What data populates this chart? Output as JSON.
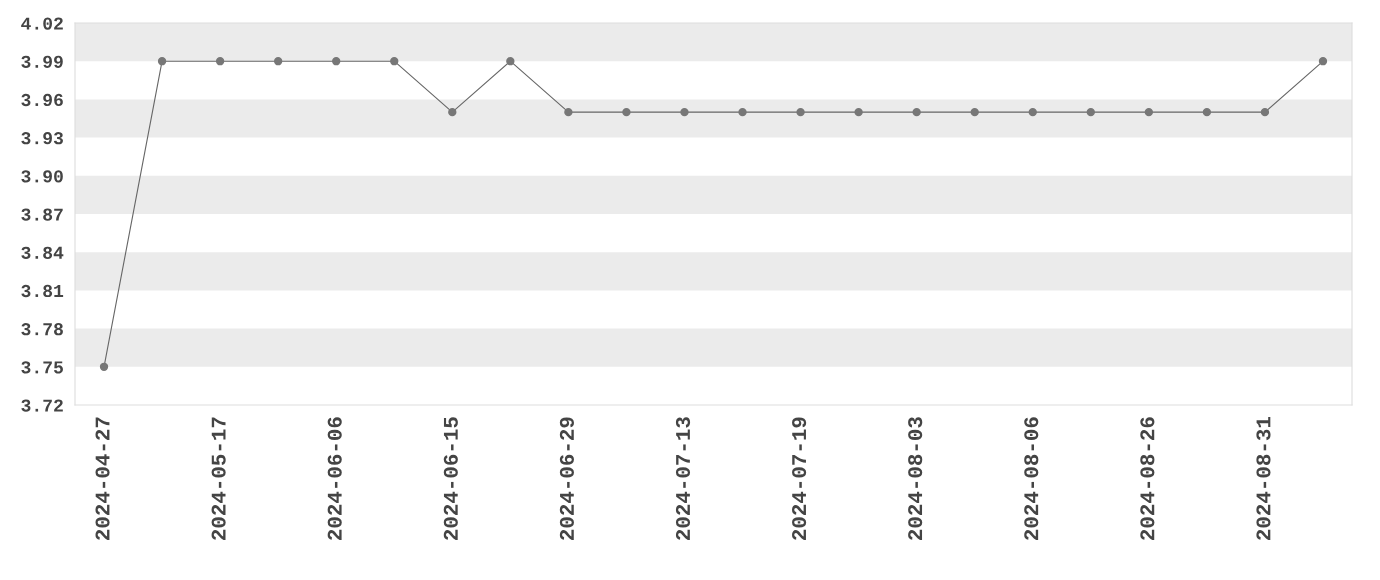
{
  "chart_data": {
    "type": "line",
    "categories": [
      "2024-04-27",
      null,
      "2024-05-17",
      null,
      "2024-06-06",
      null,
      "2024-06-15",
      null,
      "2024-06-29",
      null,
      "2024-07-13",
      null,
      "2024-07-19",
      null,
      "2024-08-03",
      null,
      "2024-08-06",
      null,
      "2024-08-26",
      null,
      "2024-08-31",
      null
    ],
    "series": [
      {
        "color": "#666666",
        "values": [
          3.75,
          3.99,
          3.99,
          3.99,
          3.99,
          3.99,
          3.95,
          3.99,
          3.95,
          3.95,
          3.95,
          3.95,
          3.95,
          3.95,
          3.95,
          3.95,
          3.95,
          3.95,
          3.95,
          3.95,
          3.95,
          3.99
        ]
      }
    ],
    "ylim": [
      3.72,
      4.02
    ],
    "yticks": [
      3.72,
      3.75,
      3.78,
      3.81,
      3.84,
      3.87,
      {
        "value": 3.9,
        "label": "3.90"
      },
      3.93,
      3.96,
      3.99,
      4.02
    ],
    "bands": [
      {
        "axis": "y",
        "from": 3.99,
        "to": 4.02,
        "color": "#ebebeb"
      },
      {
        "axis": "y",
        "from": 3.93,
        "to": 3.96,
        "color": "#ebebeb"
      },
      {
        "axis": "y",
        "from": 3.87,
        "to": 3.9,
        "color": "#ebebeb"
      },
      {
        "axis": "y",
        "from": 3.81,
        "to": 3.84,
        "color": "#ebebeb"
      },
      {
        "axis": "y",
        "from": 3.75,
        "to": 3.78,
        "color": "#ebebeb"
      }
    ],
    "marker": "circle",
    "line_style": "solid",
    "legend": false
  }
}
